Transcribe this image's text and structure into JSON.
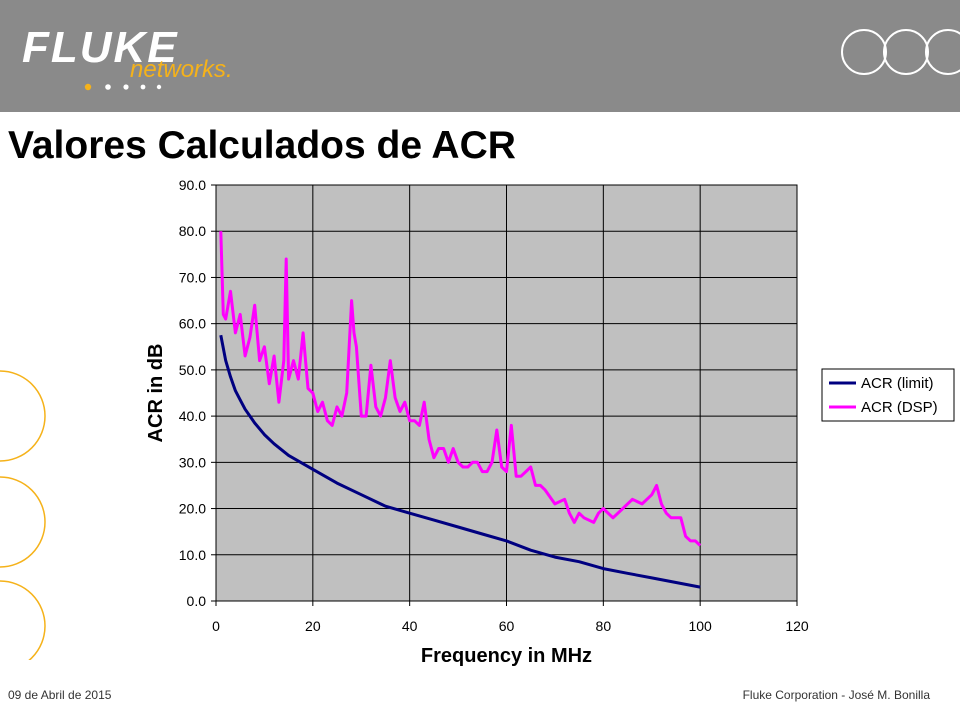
{
  "header": {
    "logo_main": "FLUKE",
    "logo_sub": "networks."
  },
  "slide": {
    "title": "Valores Calculados de ACR"
  },
  "footer": {
    "date": "09 de Abril de 2015",
    "author": "Fluke Corporation - José M. Bonilla"
  },
  "colors": {
    "header_bg": "#8a8a8a",
    "plot_bg": "#c0c0c0",
    "limit_line": "#000080",
    "dsp_line": "#ff00ff",
    "accent_gold": "#f5b21a"
  },
  "chart_data": {
    "type": "line",
    "title": "",
    "xlabel": "Frequency in MHz",
    "ylabel": "ACR in dB",
    "xlim": [
      0,
      120
    ],
    "ylim": [
      0,
      90
    ],
    "x_ticks": [
      "0",
      "20",
      "40",
      "60",
      "80",
      "100",
      "120"
    ],
    "y_ticks": [
      "0.0",
      "10.0",
      "20.0",
      "30.0",
      "40.0",
      "50.0",
      "60.0",
      "70.0",
      "80.0",
      "90.0"
    ],
    "grid": true,
    "legend_position": "right",
    "series": [
      {
        "name": "ACR (limit)",
        "color": "#000080",
        "x": [
          1,
          2,
          3,
          4,
          5,
          6,
          8,
          10,
          12,
          15,
          20,
          25,
          30,
          35,
          40,
          45,
          50,
          55,
          60,
          65,
          70,
          75,
          80,
          85,
          90,
          95,
          100
        ],
        "y": [
          57.5,
          52,
          48.5,
          45.5,
          43.5,
          41.5,
          38.5,
          36,
          34,
          31.5,
          28.5,
          25.5,
          23,
          20.5,
          19,
          17.5,
          16,
          14.5,
          13,
          11,
          9.5,
          8.5,
          7,
          6,
          5,
          4,
          3
        ]
      },
      {
        "name": "ACR (DSP)",
        "color": "#ff00ff",
        "x": [
          1,
          1.5,
          2,
          3,
          4,
          5,
          6,
          7,
          8,
          9,
          10,
          11,
          12,
          13,
          14,
          14.5,
          15,
          16,
          17,
          18,
          19,
          20,
          21,
          22,
          23,
          24,
          25,
          26,
          27,
          28,
          28.5,
          29,
          30,
          31,
          32,
          33,
          34,
          35,
          36,
          37,
          38,
          39,
          40,
          41,
          42,
          43,
          44,
          45,
          46,
          47,
          48,
          49,
          50,
          51,
          52,
          53,
          54,
          55,
          56,
          57,
          58,
          59,
          60,
          61,
          62,
          63,
          64,
          65,
          66,
          67,
          68,
          70,
          72,
          73,
          74,
          75,
          76,
          78,
          79,
          80,
          82,
          84,
          86,
          88,
          90,
          91,
          92,
          93,
          94,
          96,
          97,
          98,
          99,
          100
        ],
        "y": [
          80,
          62,
          61,
          67,
          58,
          62,
          53,
          57,
          64,
          52,
          55,
          47,
          53,
          43,
          52,
          74,
          48,
          52,
          48,
          58,
          46,
          45,
          41,
          43,
          39,
          38,
          42,
          40,
          45,
          65,
          58,
          55,
          40,
          40,
          51,
          42,
          40,
          44,
          52,
          44,
          41,
          43,
          39,
          39,
          38,
          43,
          35,
          31,
          33,
          33,
          30,
          33,
          30,
          29,
          29,
          30,
          30,
          28,
          28,
          30,
          37,
          29,
          28,
          38,
          27,
          27,
          28,
          29,
          25,
          25,
          24,
          21,
          22,
          19,
          17,
          19,
          18,
          17,
          19,
          20,
          18,
          20,
          22,
          21,
          23,
          25,
          21,
          19,
          18,
          18,
          14,
          13,
          13,
          12
        ]
      }
    ]
  }
}
